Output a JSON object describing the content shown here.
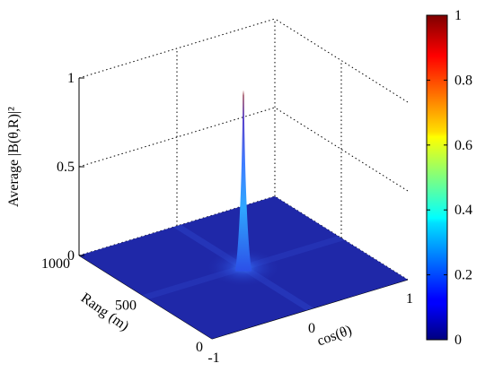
{
  "chart_data": {
    "type": "surface",
    "title": "",
    "zlabel": "Average |B(θ,R)|²",
    "xlabel": "cos(θ)",
    "ylabel": "Rang (m)",
    "xlim": [
      -1,
      1
    ],
    "ylim": [
      0,
      1000
    ],
    "zlim": [
      0,
      1
    ],
    "x_ticks": [
      "-1",
      "0",
      "1"
    ],
    "y_ticks": [
      "0",
      "500",
      "1000"
    ],
    "z_ticks": [
      "0",
      "0.5",
      "1"
    ],
    "peak": {
      "x": 0,
      "y": 500,
      "z": 1
    },
    "baseline_z": 0,
    "colormap": "jet",
    "colorbar": {
      "ticks": [
        "0",
        "0.2",
        "0.4",
        "0.6",
        "0.8",
        "1"
      ],
      "min": 0,
      "max": 1
    },
    "grid": true,
    "surface_color": "#1f28a8"
  }
}
